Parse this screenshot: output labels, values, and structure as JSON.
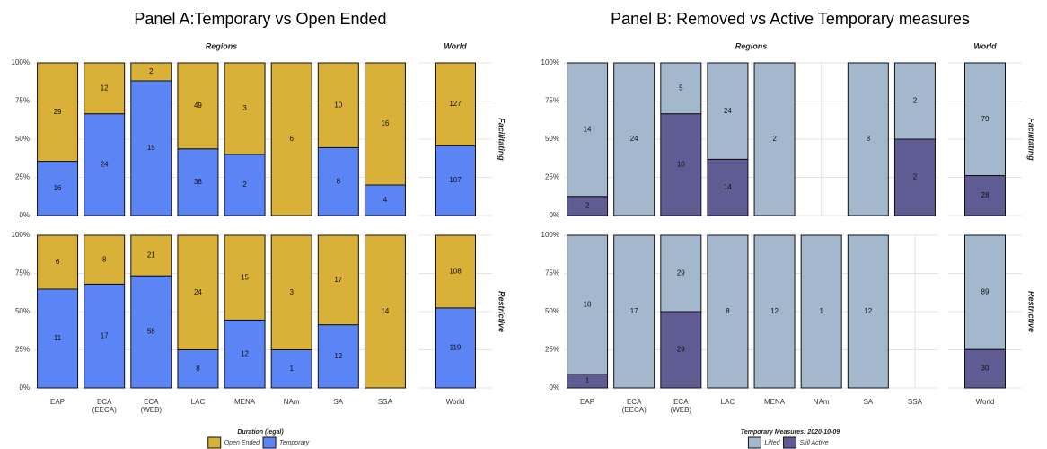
{
  "chart_data": [
    {
      "type": "bar100",
      "title": "Panel A:Temporary vs Open Ended",
      "column_labels": [
        "Regions",
        "World"
      ],
      "categories": [
        "EAP",
        "ECA\n(EECA)",
        "ECA\n(WEB)",
        "LAC",
        "MENA",
        "NAm",
        "SA",
        "SSA",
        "World"
      ],
      "legend_title": "Duration (legal)",
      "series": [
        {
          "name": "Open Ended",
          "color": "#d9b038"
        },
        {
          "name": "Temporary",
          "color": "#5b84f5"
        }
      ],
      "facets": [
        {
          "label": "Facilitating",
          "values": [
            [
              29,
              12,
              2,
              49,
              3,
              6,
              10,
              16,
              127
            ],
            [
              16,
              24,
              15,
              38,
              2,
              0,
              8,
              4,
              107
            ]
          ]
        },
        {
          "label": "Restrictive",
          "values": [
            [
              6,
              8,
              21,
              24,
              15,
              3,
              17,
              14,
              108
            ],
            [
              11,
              17,
              58,
              8,
              12,
              1,
              12,
              0,
              119
            ]
          ]
        }
      ],
      "ylim": [
        0,
        100
      ],
      "yticks": [
        {
          "value": 0,
          "label": "0%"
        },
        {
          "value": 25,
          "label": "25%"
        },
        {
          "value": 50,
          "label": "50%"
        },
        {
          "value": 75,
          "label": "75%"
        },
        {
          "value": 100,
          "label": "100%"
        }
      ],
      "grid": true
    },
    {
      "type": "bar100",
      "title": "Panel B: Removed vs Active Temporary measures",
      "column_labels": [
        "Regions",
        "World"
      ],
      "categories": [
        "EAP",
        "ECA\n(EECA)",
        "ECA\n(WEB)",
        "LAC",
        "MENA",
        "NAm",
        "SA",
        "SSA",
        "World"
      ],
      "legend_title": "Temporary Measures: 2020-10-09",
      "series": [
        {
          "name": "Lifted",
          "color": "#a3b8cc"
        },
        {
          "name": "Still Active",
          "color": "#5f5b93"
        }
      ],
      "facets": [
        {
          "label": "Facilitating",
          "values": [
            [
              14,
              24,
              5,
              24,
              2,
              null,
              8,
              2,
              79
            ],
            [
              2,
              0,
              10,
              14,
              0,
              null,
              0,
              2,
              28
            ]
          ]
        },
        {
          "label": "Restrictive",
          "values": [
            [
              10,
              17,
              29,
              8,
              12,
              1,
              12,
              null,
              89
            ],
            [
              1,
              0,
              29,
              0,
              0,
              0,
              0,
              null,
              30
            ]
          ]
        }
      ],
      "ylim": [
        0,
        100
      ],
      "yticks": [
        {
          "value": 0,
          "label": "0%"
        },
        {
          "value": 25,
          "label": "25%"
        },
        {
          "value": 50,
          "label": "50%"
        },
        {
          "value": 75,
          "label": "75%"
        },
        {
          "value": 100,
          "label": "100%"
        }
      ],
      "grid": true
    }
  ]
}
